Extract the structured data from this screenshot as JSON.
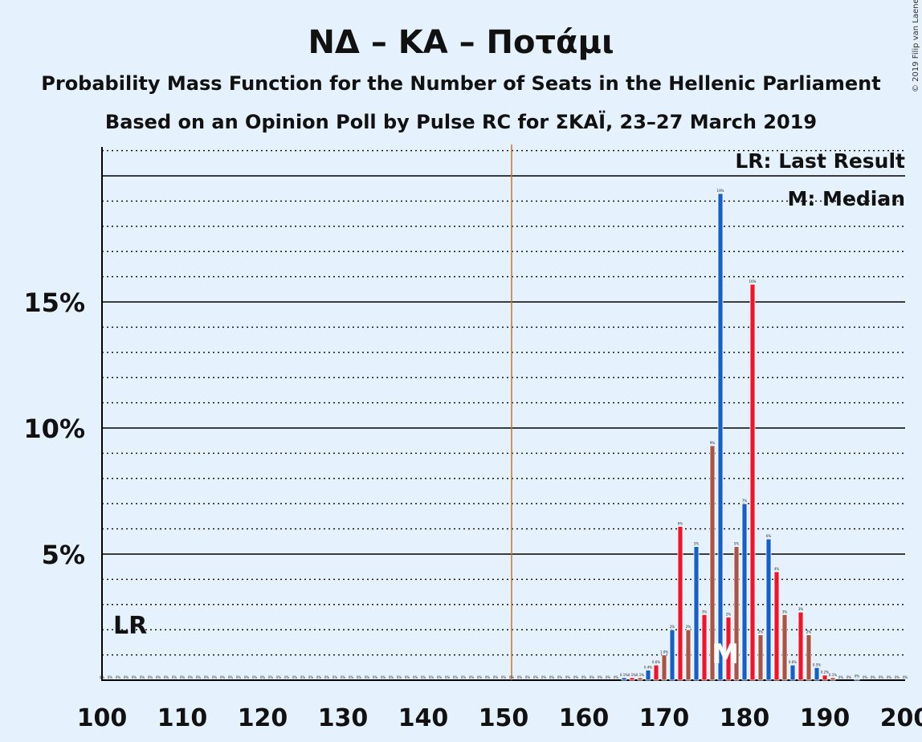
{
  "chart_data": {
    "type": "bar",
    "title": "ΝΔ – ΚΑ – Ποτάμι",
    "subtitle_1": "Probability Mass Function for the Number of Seats in the Hellenic Parliament",
    "subtitle_2": "Based on an Opinion Poll by Pulse RC for ΣΚΑΪ, 23–27 March 2019",
    "copyright": "© 2019 Filip van Laenen",
    "legend": {
      "lr": "LR: Last Result",
      "median": "M: Median"
    },
    "markers": {
      "lr_label": "LR",
      "median_label": "M",
      "lr_seat": 101,
      "median_seat": 178,
      "majority_seat": 151
    },
    "xlim": [
      100,
      200
    ],
    "ylim": [
      0,
      21
    ],
    "x_ticks": [
      100,
      110,
      120,
      130,
      140,
      150,
      160,
      170,
      180,
      190,
      200
    ],
    "y_ticks": [
      {
        "value": 5,
        "label": "5%"
      },
      {
        "value": 10,
        "label": "10%"
      },
      {
        "value": 15,
        "label": "15%"
      }
    ],
    "colors": {
      "blue": "#1560c8",
      "red": "#f0142a",
      "brown": "#a85544",
      "majority_line": "#c0772c"
    },
    "bars": [
      {
        "seat": 165,
        "value": 0.1,
        "color": "blue",
        "label": "0.1%"
      },
      {
        "seat": 166,
        "value": 0.1,
        "color": "red",
        "label": "0.1%"
      },
      {
        "seat": 167,
        "value": 0.1,
        "color": "brown",
        "label": "0.1%"
      },
      {
        "seat": 168,
        "value": 0.4,
        "color": "blue",
        "label": "0.4%"
      },
      {
        "seat": 169,
        "value": 0.6,
        "color": "red",
        "label": "0.6%"
      },
      {
        "seat": 170,
        "value": 1.0,
        "color": "brown",
        "label": "1.0%"
      },
      {
        "seat": 171,
        "value": 2.0,
        "color": "blue",
        "label": "2%"
      },
      {
        "seat": 172,
        "value": 6.1,
        "color": "red",
        "label": "6%"
      },
      {
        "seat": 173,
        "value": 2.0,
        "color": "brown",
        "label": "2%"
      },
      {
        "seat": 174,
        "value": 5.3,
        "color": "blue",
        "label": "5%"
      },
      {
        "seat": 175,
        "value": 2.6,
        "color": "red",
        "label": "3%"
      },
      {
        "seat": 176,
        "value": 9.3,
        "color": "brown",
        "label": "9%"
      },
      {
        "seat": 177,
        "value": 19.3,
        "color": "blue",
        "label": "19%"
      },
      {
        "seat": 178,
        "value": 2.5,
        "color": "red",
        "label": "2%"
      },
      {
        "seat": 179,
        "value": 5.3,
        "color": "brown",
        "label": "5%"
      },
      {
        "seat": 180,
        "value": 7.0,
        "color": "blue",
        "label": "7%"
      },
      {
        "seat": 181,
        "value": 15.7,
        "color": "red",
        "label": "16%"
      },
      {
        "seat": 182,
        "value": 1.8,
        "color": "brown",
        "label": "2%"
      },
      {
        "seat": 183,
        "value": 5.6,
        "color": "blue",
        "label": "6%"
      },
      {
        "seat": 184,
        "value": 4.3,
        "color": "red",
        "label": "4%"
      },
      {
        "seat": 185,
        "value": 2.6,
        "color": "brown",
        "label": "3%"
      },
      {
        "seat": 186,
        "value": 0.6,
        "color": "blue",
        "label": "0.6%"
      },
      {
        "seat": 187,
        "value": 2.7,
        "color": "red",
        "label": "3%"
      },
      {
        "seat": 188,
        "value": 1.8,
        "color": "brown",
        "label": "2%"
      },
      {
        "seat": 189,
        "value": 0.5,
        "color": "blue",
        "label": "0.5%"
      },
      {
        "seat": 190,
        "value": 0.2,
        "color": "red",
        "label": "0.2%"
      },
      {
        "seat": 191,
        "value": 0.1,
        "color": "brown",
        "label": "0.1%"
      },
      {
        "seat": 194,
        "value": 0.05,
        "color": "blue",
        "label": "0%"
      }
    ],
    "zero_label": "0%"
  }
}
